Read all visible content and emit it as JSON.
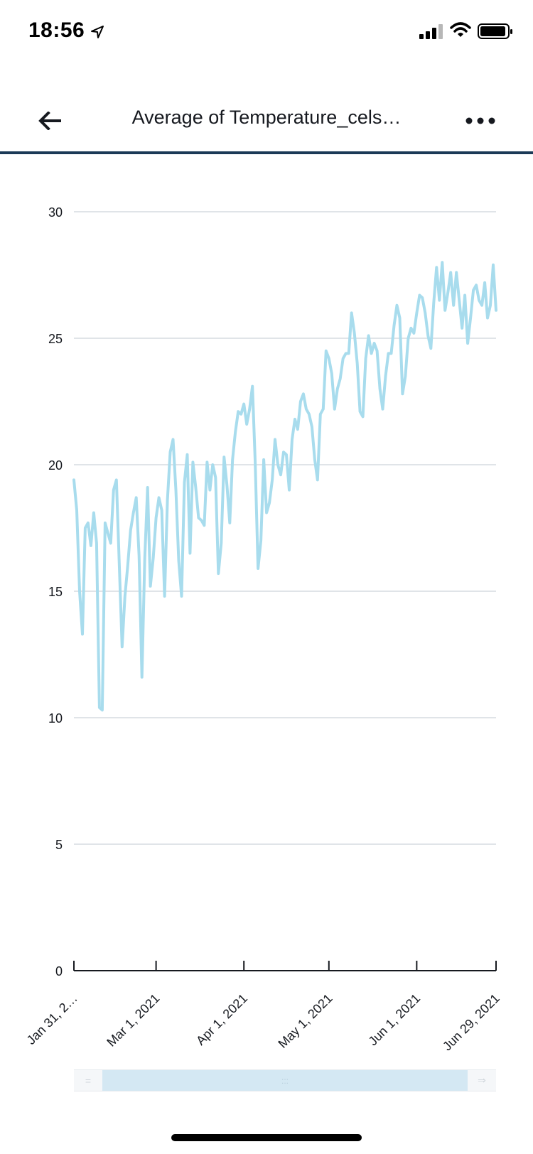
{
  "status_bar": {
    "time": "18:56",
    "icons": [
      "location-arrow-icon",
      "cellular-signal-icon",
      "wifi-icon",
      "battery-icon"
    ]
  },
  "nav": {
    "title": "Average of Temperature_cels…",
    "back_icon": "arrow-left-icon",
    "more_icon": "more-horizontal-icon"
  },
  "colors": {
    "line": "#a8dced",
    "grid": "#d5dbe0",
    "axis": "#16191f",
    "nav_divider": "#1b3a57",
    "range_window": "#d4e8f3"
  },
  "chart_data": {
    "type": "line",
    "title": "Average of Temperature_cels…",
    "xlabel": "",
    "ylabel": "",
    "ylim": [
      0,
      30
    ],
    "yticks": [
      0,
      5,
      10,
      15,
      20,
      25,
      30
    ],
    "xlim": [
      "2021-01-31",
      "2021-06-29"
    ],
    "xticks": [
      {
        "date": "2021-01-31",
        "label": "Jan 31, 2…"
      },
      {
        "date": "2021-03-01",
        "label": "Mar 1, 2021"
      },
      {
        "date": "2021-04-01",
        "label": "Apr 1, 2021"
      },
      {
        "date": "2021-05-01",
        "label": "May 1, 2021"
      },
      {
        "date": "2021-06-01",
        "label": "Jun 1, 2021"
      },
      {
        "date": "2021-06-29",
        "label": "Jun 29, 2021"
      }
    ],
    "grid": true,
    "legend": "none",
    "series": [
      {
        "x": [
          "2021-01-31",
          "2021-02-01",
          "2021-02-02",
          "2021-02-03",
          "2021-02-04",
          "2021-02-05",
          "2021-02-06",
          "2021-02-07",
          "2021-02-08",
          "2021-02-09",
          "2021-02-10",
          "2021-02-11",
          "2021-02-12",
          "2021-02-13",
          "2021-02-14",
          "2021-02-15",
          "2021-02-16",
          "2021-02-17",
          "2021-02-18",
          "2021-02-19",
          "2021-02-20",
          "2021-02-21",
          "2021-02-22",
          "2021-02-23",
          "2021-02-24",
          "2021-02-25",
          "2021-02-26",
          "2021-02-27",
          "2021-02-28",
          "2021-03-01",
          "2021-03-02",
          "2021-03-03",
          "2021-03-04",
          "2021-03-05",
          "2021-03-06",
          "2021-03-07",
          "2021-03-08",
          "2021-03-09",
          "2021-03-10",
          "2021-03-11",
          "2021-03-12",
          "2021-03-13",
          "2021-03-14",
          "2021-03-15",
          "2021-03-16",
          "2021-03-17",
          "2021-03-18",
          "2021-03-19",
          "2021-03-20",
          "2021-03-21",
          "2021-03-22",
          "2021-03-23",
          "2021-03-24",
          "2021-03-25",
          "2021-03-26",
          "2021-03-27",
          "2021-03-28",
          "2021-03-29",
          "2021-03-30",
          "2021-03-31",
          "2021-04-01",
          "2021-04-02",
          "2021-04-03",
          "2021-04-04",
          "2021-04-05",
          "2021-04-06",
          "2021-04-07",
          "2021-04-08",
          "2021-04-09",
          "2021-04-10",
          "2021-04-11",
          "2021-04-12",
          "2021-04-13",
          "2021-04-14",
          "2021-04-15",
          "2021-04-16",
          "2021-04-17",
          "2021-04-18",
          "2021-04-19",
          "2021-04-20",
          "2021-04-21",
          "2021-04-22",
          "2021-04-23",
          "2021-04-24",
          "2021-04-25",
          "2021-04-26",
          "2021-04-27",
          "2021-04-28",
          "2021-04-29",
          "2021-04-30",
          "2021-05-01",
          "2021-05-02",
          "2021-05-03",
          "2021-05-04",
          "2021-05-05",
          "2021-05-06",
          "2021-05-07",
          "2021-05-08",
          "2021-05-09",
          "2021-05-10",
          "2021-05-11",
          "2021-05-12",
          "2021-05-13",
          "2021-05-14",
          "2021-05-15",
          "2021-05-16",
          "2021-05-17",
          "2021-05-18",
          "2021-05-19",
          "2021-05-20",
          "2021-05-21",
          "2021-05-22",
          "2021-05-23",
          "2021-05-24",
          "2021-05-25",
          "2021-05-26",
          "2021-05-27",
          "2021-05-28",
          "2021-05-29",
          "2021-05-30",
          "2021-05-31",
          "2021-06-01",
          "2021-06-02",
          "2021-06-03",
          "2021-06-04",
          "2021-06-05",
          "2021-06-06",
          "2021-06-07",
          "2021-06-08",
          "2021-06-09",
          "2021-06-10",
          "2021-06-11",
          "2021-06-12",
          "2021-06-13",
          "2021-06-14",
          "2021-06-15",
          "2021-06-16",
          "2021-06-17",
          "2021-06-18",
          "2021-06-19",
          "2021-06-20",
          "2021-06-21",
          "2021-06-22",
          "2021-06-23",
          "2021-06-24",
          "2021-06-25",
          "2021-06-26",
          "2021-06-27",
          "2021-06-28",
          "2021-06-29"
        ],
        "values": [
          19.4,
          18.2,
          15.0,
          13.3,
          17.5,
          17.7,
          16.8,
          18.1,
          16.9,
          10.4,
          10.3,
          17.7,
          17.3,
          16.9,
          19.0,
          19.4,
          16.1,
          12.8,
          14.8,
          16.0,
          17.4,
          18.1,
          18.7,
          16.4,
          11.6,
          16.3,
          19.1,
          15.2,
          16.3,
          17.9,
          18.7,
          18.2,
          14.8,
          18.6,
          20.5,
          21.0,
          19.0,
          16.2,
          14.8,
          19.3,
          20.4,
          16.5,
          20.1,
          19.1,
          17.9,
          17.8,
          17.6,
          20.1,
          19.0,
          20.0,
          19.5,
          15.7,
          16.9,
          20.3,
          19.2,
          17.7,
          20.2,
          21.3,
          22.1,
          22.0,
          22.4,
          21.6,
          22.2,
          23.1,
          20.1,
          15.9,
          17.0,
          20.2,
          18.1,
          18.5,
          19.4,
          21.0,
          20.0,
          19.6,
          20.5,
          20.4,
          19.0,
          21.0,
          21.8,
          21.4,
          22.5,
          22.8,
          22.2,
          22.0,
          21.5,
          20.2,
          19.4,
          22.0,
          22.2,
          24.5,
          24.2,
          23.6,
          22.2,
          23.0,
          23.4,
          24.2,
          24.4,
          24.4,
          26.0,
          25.2,
          24.0,
          22.1,
          21.9,
          24.2,
          25.1,
          24.4,
          24.8,
          24.5,
          23.0,
          22.2,
          23.5,
          24.4,
          24.4,
          25.5,
          26.3,
          25.8,
          22.8,
          23.5,
          25.0,
          25.4,
          25.2,
          26.0,
          26.7,
          26.6,
          26.0,
          25.1,
          24.6,
          26.4,
          27.8,
          26.5,
          28.0,
          26.1,
          26.8,
          27.6,
          26.3,
          27.6,
          26.5,
          25.4,
          26.7,
          24.8,
          25.8,
          26.9,
          27.1,
          26.5,
          26.3,
          27.2,
          25.8,
          26.3,
          27.9,
          26.1
        ]
      }
    ]
  },
  "range_slider": {
    "left_handle": "=",
    "grip": ":::",
    "right_handle": "⇒"
  }
}
